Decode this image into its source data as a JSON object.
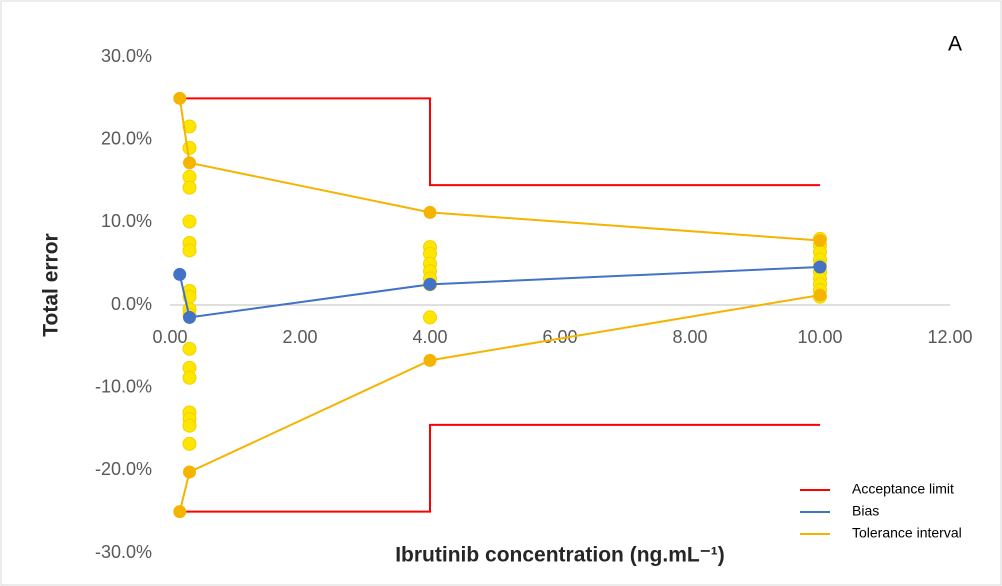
{
  "chart_data": {
    "type": "line",
    "annotation": "A",
    "x_label": "Ibrutinib concentration (ng.mL⁻¹)",
    "y_label": "Total error",
    "xlim": [
      0,
      12
    ],
    "xticks": [
      {
        "value": 0,
        "label": "0.00"
      },
      {
        "value": 2,
        "label": "2.00"
      },
      {
        "value": 4,
        "label": "4.00"
      },
      {
        "value": 6,
        "label": "6.00"
      },
      {
        "value": 8,
        "label": "8.00"
      },
      {
        "value": 10,
        "label": "10.00"
      },
      {
        "value": 12,
        "label": "12.00"
      }
    ],
    "ylim": [
      -30,
      30
    ],
    "yticks": [
      {
        "value": -30,
        "label": "-30.0%"
      },
      {
        "value": -20,
        "label": "-20.0%"
      },
      {
        "value": -10,
        "label": "-10.0%"
      },
      {
        "value": 0,
        "label": "0.0%"
      },
      {
        "value": 10,
        "label": "10.0%"
      },
      {
        "value": 20,
        "label": "20.0%"
      },
      {
        "value": 30,
        "label": "30.0%"
      }
    ],
    "legend": "bottom-right",
    "series": [
      {
        "color": "#ffe600",
        "line": false,
        "marker": true,
        "x": [
          0.3,
          0.3,
          0.3,
          0.3,
          0.3,
          0.3,
          0.3,
          0.3,
          0.3,
          0.3,
          0.3,
          0.3,
          0.3,
          0.3,
          0.3,
          0.3,
          0.3,
          0.3,
          4,
          4,
          4,
          4,
          4,
          4,
          4,
          10,
          10,
          10,
          10,
          10,
          10,
          10,
          10,
          10,
          10
        ],
        "values": [
          21.6,
          19,
          15.5,
          14.2,
          10.1,
          7.5,
          6.6,
          1.7,
          1.0,
          -0.5,
          -1.2,
          -5.3,
          -7.6,
          -8.8,
          -13,
          -13.8,
          -14.6,
          -16.8,
          7,
          6.2,
          5,
          4.1,
          3.2,
          2.5,
          -1.5,
          8,
          7.2,
          6.4,
          5.5,
          4.8,
          4,
          3.2,
          2.5,
          1.8,
          1
        ]
      },
      {
        "name": "Acceptance limit",
        "color": "#ff0000",
        "line": true,
        "marker": false,
        "x": [
          0.15,
          4,
          4,
          10,
          10,
          0.15,
          4,
          4,
          10
        ],
        "values": [
          25,
          25,
          14.5,
          14.5,
          null,
          -25,
          -25,
          -14.5,
          -14.5
        ]
      },
      {
        "name": "Bias",
        "color": "#4472c4",
        "line": true,
        "marker": true,
        "x": [
          0.15,
          0.3,
          4,
          10
        ],
        "values": [
          3.7,
          -1.5,
          2.5,
          4.6
        ]
      },
      {
        "name": "Tolerance interval",
        "color": "#f5b400",
        "line": true,
        "marker": true,
        "x": [
          0.15,
          0.3,
          4,
          10,
          10,
          0.15,
          0.3,
          4,
          10
        ],
        "values": [
          25,
          17.2,
          11.2,
          7.8,
          null,
          -25,
          -20.2,
          -6.7,
          1.2
        ]
      }
    ]
  }
}
